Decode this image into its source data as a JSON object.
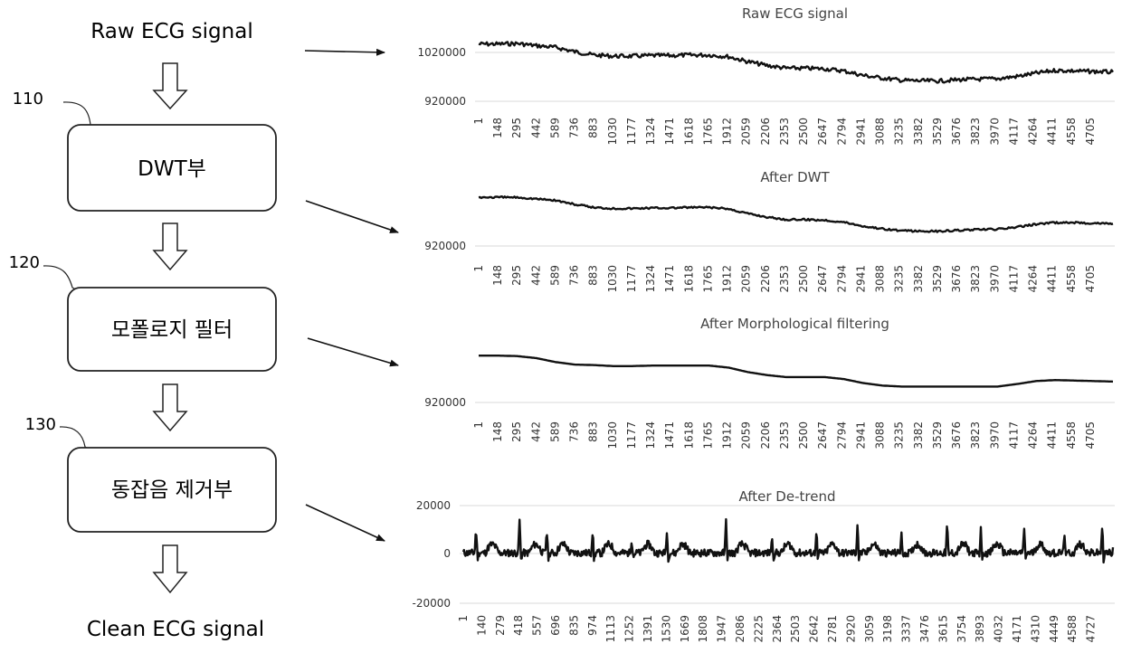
{
  "flow": {
    "input_label": "Raw ECG signal",
    "output_label": "Clean ECG signal",
    "blocks": [
      {
        "ref": "110",
        "label": "DWT부"
      },
      {
        "ref": "120",
        "label": "모폴로지 필터"
      },
      {
        "ref": "130",
        "label": "동잡음 제거부"
      }
    ]
  },
  "chart_data": [
    {
      "type": "line",
      "title": "Raw ECG signal",
      "y_tick_labels": [
        "1020000",
        "920000"
      ],
      "x_tick_labels": [
        "1",
        "148",
        "295",
        "442",
        "589",
        "736",
        "883",
        "1030",
        "1177",
        "1324",
        "1471",
        "1618",
        "1765",
        "1912",
        "2059",
        "2206",
        "2353",
        "2500",
        "2647",
        "2794",
        "2941",
        "3088",
        "3235",
        "3382",
        "3529",
        "3676",
        "3823",
        "3970",
        "4117",
        "4264",
        "4411",
        "4558",
        "4705"
      ],
      "x": [
        1,
        148,
        295,
        442,
        589,
        736,
        883,
        1030,
        1177,
        1324,
        1471,
        1618,
        1765,
        1912,
        2059,
        2206,
        2353,
        2500,
        2647,
        2794,
        2941,
        3088,
        3235,
        3382,
        3529,
        3676,
        3823,
        3970,
        4117,
        4264,
        4411,
        4558,
        4705,
        4852
      ],
      "values": [
        1019000,
        1019000,
        1020000,
        1016000,
        1013000,
        1005000,
        999000,
        997000,
        997000,
        998000,
        998000,
        999000,
        999000,
        996000,
        987000,
        980000,
        975000,
        975000,
        974000,
        970000,
        962000,
        957000,
        953000,
        952000,
        952000,
        954000,
        955000,
        956000,
        960000,
        966000,
        971000,
        970000,
        969000,
        968000
      ],
      "ylim": [
        905000,
        1030000
      ]
    },
    {
      "type": "line",
      "title": "After DWT",
      "y_tick_labels": [
        "920000"
      ],
      "x_tick_labels": [
        "1",
        "148",
        "295",
        "442",
        "589",
        "736",
        "883",
        "1030",
        "1177",
        "1324",
        "1471",
        "1618",
        "1765",
        "1912",
        "2059",
        "2206",
        "2353",
        "2500",
        "2647",
        "2794",
        "2941",
        "3088",
        "3235",
        "3382",
        "3529",
        "3676",
        "3823",
        "3970",
        "4117",
        "4264",
        "4411",
        "4558",
        "4705"
      ],
      "x": [
        1,
        148,
        295,
        442,
        589,
        736,
        883,
        1030,
        1177,
        1324,
        1471,
        1618,
        1765,
        1912,
        2059,
        2206,
        2353,
        2500,
        2647,
        2794,
        2941,
        3088,
        3235,
        3382,
        3529,
        3676,
        3823,
        3970,
        4117,
        4264,
        4411,
        4558,
        4705,
        4852
      ],
      "values": [
        1019000,
        1019000,
        1019000,
        1016000,
        1013000,
        1005000,
        999000,
        997000,
        997000,
        998000,
        998000,
        999000,
        999000,
        996000,
        987000,
        980000,
        975000,
        975000,
        974000,
        970000,
        962000,
        957000,
        953000,
        952000,
        952000,
        954000,
        955000,
        956000,
        960000,
        966000,
        969000,
        969000,
        968000,
        967000
      ],
      "ylim": [
        905000,
        1030000
      ]
    },
    {
      "type": "line",
      "title": "After Morphological filtering",
      "y_tick_labels": [
        "920000"
      ],
      "x_tick_labels": [
        "1",
        "148",
        "295",
        "442",
        "589",
        "736",
        "883",
        "1030",
        "1177",
        "1324",
        "1471",
        "1618",
        "1765",
        "1912",
        "2059",
        "2206",
        "2353",
        "2500",
        "2647",
        "2794",
        "2941",
        "3088",
        "3235",
        "3382",
        "3529",
        "3676",
        "3823",
        "3970",
        "4117",
        "4264",
        "4411",
        "4558",
        "4705"
      ],
      "x": [
        1,
        148,
        295,
        442,
        589,
        736,
        883,
        1030,
        1177,
        1324,
        1471,
        1618,
        1765,
        1912,
        2059,
        2206,
        2353,
        2500,
        2647,
        2794,
        2941,
        3088,
        3235,
        3382,
        3529,
        3676,
        3823,
        3970,
        4117,
        4264,
        4411,
        4558,
        4705,
        4852
      ],
      "values": [
        1017000,
        1017000,
        1016000,
        1012000,
        1004000,
        999000,
        998000,
        996000,
        996000,
        997000,
        997000,
        997000,
        997000,
        993000,
        984000,
        978000,
        974000,
        974000,
        974000,
        970000,
        962000,
        957000,
        955000,
        955000,
        955000,
        955000,
        955000,
        955000,
        960000,
        966000,
        968000,
        967000,
        966000,
        965000
      ],
      "ylim": [
        905000,
        1030000
      ]
    },
    {
      "type": "line",
      "title": "After De-trend",
      "y_tick_labels": [
        "20000",
        "0",
        "-20000"
      ],
      "ylim": [
        -20000,
        20000
      ],
      "x_tick_labels": [
        "1",
        "140",
        "279",
        "418",
        "557",
        "696",
        "835",
        "974",
        "1113",
        "1252",
        "1391",
        "1530",
        "1669",
        "1808",
        "1947",
        "2086",
        "2225",
        "2364",
        "2503",
        "2642",
        "2781",
        "2920",
        "3059",
        "3198",
        "3337",
        "3476",
        "3615",
        "3754",
        "3893",
        "4032",
        "4171",
        "4310",
        "4449",
        "4588",
        "4727"
      ],
      "x_range": [
        1,
        4820
      ],
      "beats": [
        {
          "x": 95,
          "amp": 10500
        },
        {
          "x": 418,
          "amp": 14000
        },
        {
          "x": 620,
          "amp": 10000
        },
        {
          "x": 960,
          "amp": 9000
        },
        {
          "x": 1250,
          "amp": 6000
        },
        {
          "x": 1510,
          "amp": 9000
        },
        {
          "x": 1950,
          "amp": 13500
        },
        {
          "x": 2290,
          "amp": 6500
        },
        {
          "x": 2620,
          "amp": 9500
        },
        {
          "x": 2925,
          "amp": 12500
        },
        {
          "x": 3250,
          "amp": 9000
        },
        {
          "x": 3590,
          "amp": 12000
        },
        {
          "x": 3840,
          "amp": 9500
        },
        {
          "x": 4160,
          "amp": 10000
        },
        {
          "x": 4460,
          "amp": 9500
        },
        {
          "x": 4740,
          "amp": 11000
        }
      ],
      "baseline_noise": 1500
    }
  ]
}
